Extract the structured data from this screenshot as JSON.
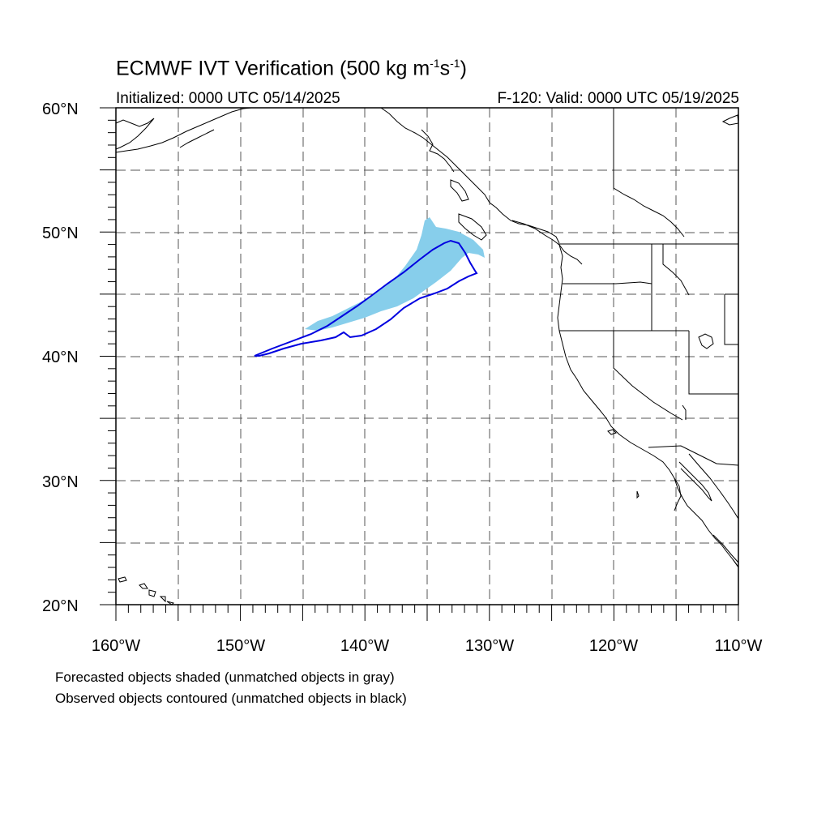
{
  "title": {
    "main": "ECMWF IVT Verification (500 kg m",
    "exp1": "-1",
    "mid": "s",
    "exp2": "-1",
    "end": ")"
  },
  "initialized": "Initialized: 0000 UTC 05/14/2025",
  "valid": "F-120: Valid: 0000 UTC 05/19/2025",
  "lat_labels": [
    "60°N",
    "50°N",
    "40°N",
    "30°N",
    "20°N"
  ],
  "lon_labels": [
    "160°W",
    "150°W",
    "140°W",
    "130°W",
    "120°W",
    "110°W"
  ],
  "notes": [
    "Forecasted objects shaded (unmatched objects in gray)",
    "Observed objects contoured (unmatched objects in black)"
  ],
  "colors": {
    "forecast_fill": "#87CEEB",
    "observed_contour": "#0000E0",
    "coastline": "#000000",
    "grid": "#555555"
  },
  "map": {
    "lon_range": [
      -160,
      -110
    ],
    "lat_range": [
      20,
      60
    ],
    "grid_spacing_deg": 5,
    "grid_style": "dashed"
  }
}
